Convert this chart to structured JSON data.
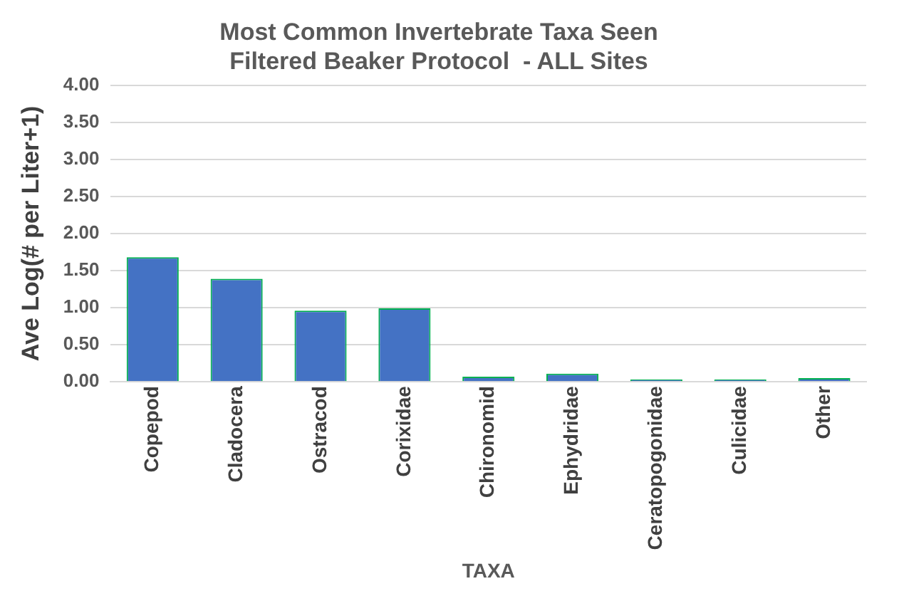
{
  "chart_data": {
    "type": "bar",
    "title": [
      "Most Common Invertebrate Taxa Seen",
      "Filtered Beaker Protocol  - ALL Sites"
    ],
    "xlabel": "TAXA",
    "ylabel": "Ave Log(# per Liter+1)",
    "categories": [
      "Copepod",
      "Cladocera",
      "Ostracod",
      "Corixidae",
      "Chironomid",
      "Ephydridae",
      "Ceratopogonidae",
      "Culicidae",
      "Other"
    ],
    "series": [
      {
        "color": "#4472c4",
        "values": [
          1.68,
          1.39,
          0.96,
          0.99,
          0.07,
          0.11,
          0.03,
          0.03,
          0.05
        ]
      }
    ],
    "ylim": [
      0,
      4
    ],
    "yticks": [
      {
        "value": 0,
        "label": "0.00"
      },
      {
        "value": 0.5,
        "label": "0.50"
      },
      {
        "value": 1,
        "label": "1.00"
      },
      {
        "value": 1.5,
        "label": "1.50"
      },
      {
        "value": 2,
        "label": "2.00"
      },
      {
        "value": 2.5,
        "label": "2.50"
      },
      {
        "value": 3,
        "label": "3.00"
      },
      {
        "value": 3.5,
        "label": "3.50"
      },
      {
        "value": 4,
        "label": "4.00"
      }
    ],
    "grid": "y",
    "legend": false
  }
}
